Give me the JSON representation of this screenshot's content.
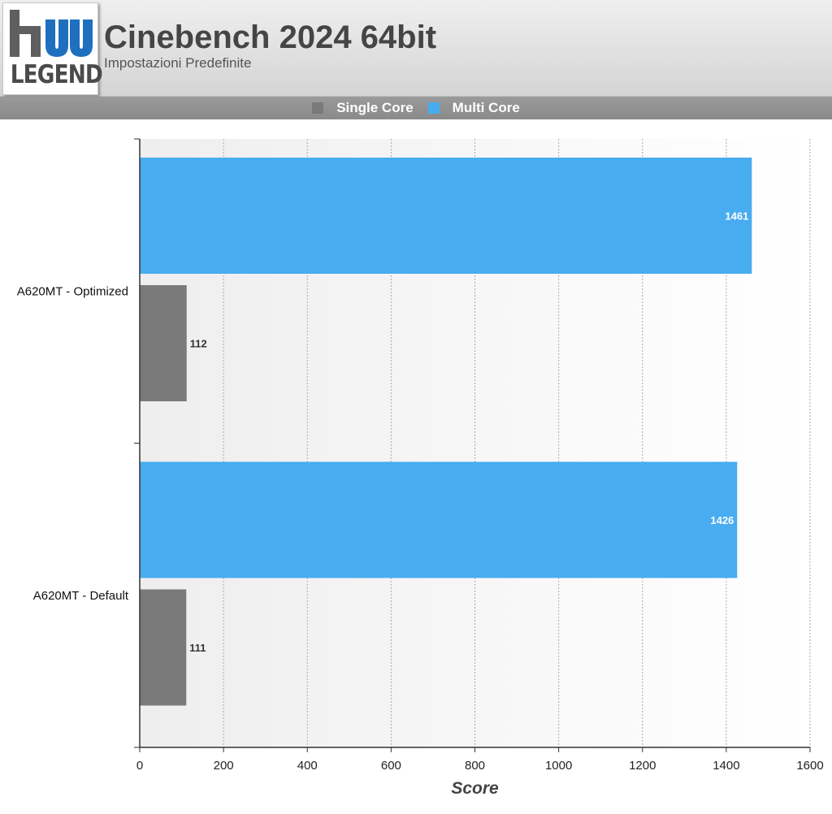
{
  "header": {
    "logo_text": "LEGEND",
    "title": "Cinebench 2024 64bit",
    "subtitle": "Impostazioni Predefinite"
  },
  "colors": {
    "single_core": "#7a7a7a",
    "multi_core": "#48acf0",
    "logo_blue": "#1f6fbf",
    "logo_gray": "#5f5f5f"
  },
  "chart_data": {
    "type": "bar",
    "orientation": "horizontal",
    "title": "Cinebench 2024 64bit",
    "subtitle": "Impostazioni Predefinite",
    "categories": [
      "A620MT - Optimized",
      "A620MT - Default"
    ],
    "series": [
      {
        "name": "Single Core",
        "values": [
          112,
          111
        ],
        "color": "#7a7a7a"
      },
      {
        "name": "Multi Core",
        "values": [
          1461,
          1426
        ],
        "color": "#48acf0"
      }
    ],
    "xlabel": "Score",
    "ylabel": "",
    "xlim": [
      0,
      1600
    ],
    "xticks": [
      0,
      200,
      400,
      600,
      800,
      1000,
      1200,
      1400,
      1600
    ],
    "grid": true,
    "legend": "top-center",
    "data_labels": true
  }
}
